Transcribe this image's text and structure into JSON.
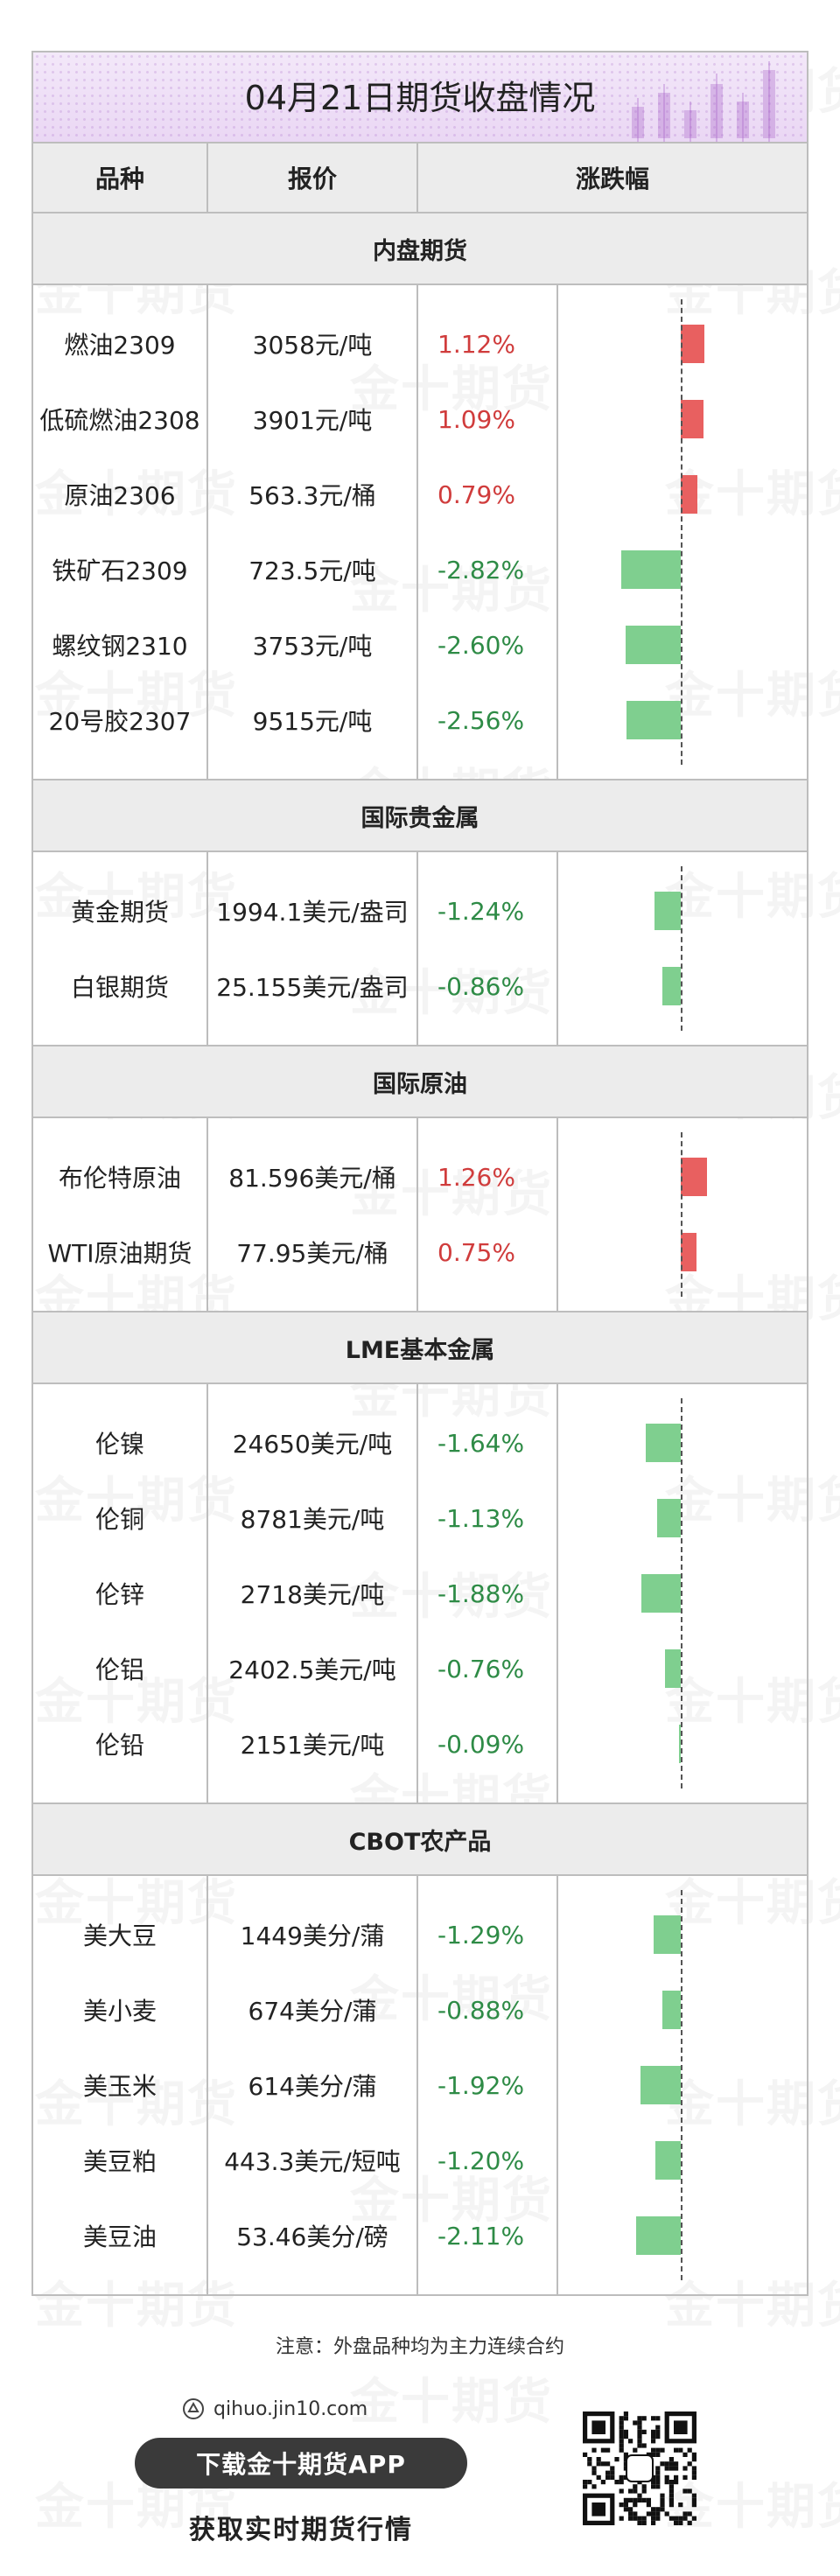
{
  "title": "04月21日期货收盘情况",
  "watermark": "金十期货",
  "header": {
    "col1": "品种",
    "col2": "报价",
    "col3": "涨跌幅"
  },
  "colors": {
    "up": "#d03c3c",
    "down": "#2e8b46",
    "up_bar": "#e86060",
    "down_bar": "#7fcf8f",
    "title_bg": "#ead7f4"
  },
  "sections": [
    {
      "name": "内盘期货",
      "rows": [
        {
          "name": "燃油2309",
          "price": "3058元/吨",
          "change_text": "1.12%",
          "change": 1.12
        },
        {
          "name": "低硫燃油2308",
          "price": "3901元/吨",
          "change_text": "1.09%",
          "change": 1.09
        },
        {
          "name": "原油2306",
          "price": "563.3元/桶",
          "change_text": "0.79%",
          "change": 0.79
        },
        {
          "name": "铁矿石2309",
          "price": "723.5元/吨",
          "change_text": "-2.82%",
          "change": -2.82
        },
        {
          "name": "螺纹钢2310",
          "price": "3753元/吨",
          "change_text": "-2.60%",
          "change": -2.6
        },
        {
          "name": "20号胶2307",
          "price": "9515元/吨",
          "change_text": "-2.56%",
          "change": -2.56
        }
      ]
    },
    {
      "name": "国际贵金属",
      "rows": [
        {
          "name": "黄金期货",
          "price": "1994.1美元/盎司",
          "change_text": "-1.24%",
          "change": -1.24
        },
        {
          "name": "白银期货",
          "price": "25.155美元/盎司",
          "change_text": "-0.86%",
          "change": -0.86
        }
      ]
    },
    {
      "name": "国际原油",
      "rows": [
        {
          "name": "布伦特原油",
          "price": "81.596美元/桶",
          "change_text": "1.26%",
          "change": 1.26
        },
        {
          "name": "WTI原油期货",
          "price": "77.95美元/桶",
          "change_text": "0.75%",
          "change": 0.75
        }
      ]
    },
    {
      "name": "LME基本金属",
      "rows": [
        {
          "name": "伦镍",
          "price": "24650美元/吨",
          "change_text": "-1.64%",
          "change": -1.64
        },
        {
          "name": "伦铜",
          "price": "8781美元/吨",
          "change_text": "-1.13%",
          "change": -1.13
        },
        {
          "name": "伦锌",
          "price": "2718美元/吨",
          "change_text": "-1.88%",
          "change": -1.88
        },
        {
          "name": "伦铝",
          "price": "2402.5美元/吨",
          "change_text": "-0.76%",
          "change": -0.76
        },
        {
          "name": "伦铅",
          "price": "2151美元/吨",
          "change_text": "-0.09%",
          "change": -0.09
        }
      ]
    },
    {
      "name": "CBOT农产品",
      "rows": [
        {
          "name": "美大豆",
          "price": "1449美分/蒲",
          "change_text": "-1.29%",
          "change": -1.29
        },
        {
          "name": "美小麦",
          "price": "674美分/蒲",
          "change_text": "-0.88%",
          "change": -0.88
        },
        {
          "name": "美玉米",
          "price": "614美分/蒲",
          "change_text": "-1.92%",
          "change": -1.92
        },
        {
          "name": "美豆粕",
          "price": "443.3美元/短吨",
          "change_text": "-1.20%",
          "change": -1.2
        },
        {
          "name": "美豆油",
          "price": "53.46美分/磅",
          "change_text": "-2.11%",
          "change": -2.11
        }
      ]
    }
  ],
  "note": "注意：外盘品种均为主力连续合约",
  "footer": {
    "site": "qihuo.jin10.com",
    "download_button": "下载金十期货APP",
    "tagline": "获取实时期货行情"
  }
}
